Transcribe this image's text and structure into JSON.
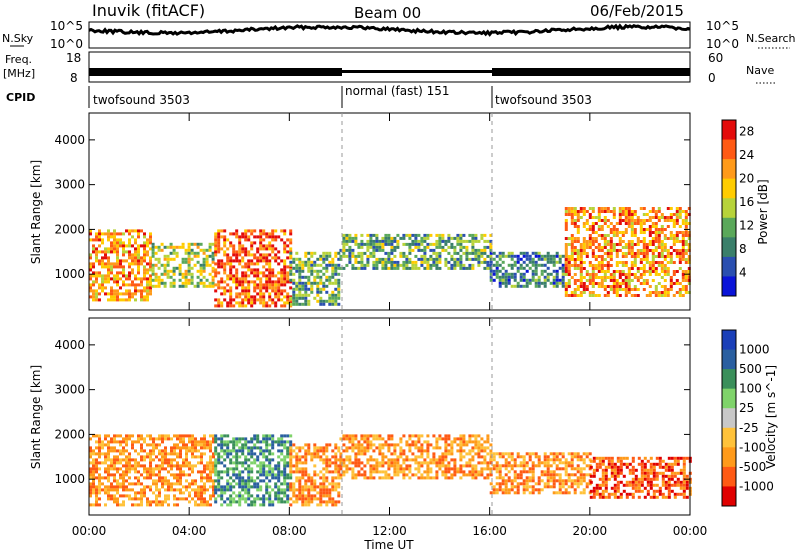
{
  "header": {
    "station": "Inuvik (fitACF)",
    "beam": "Beam 00",
    "date": "06/Feb/2015"
  },
  "top_panels": {
    "nsky": {
      "label": "N.Sky",
      "ticks": [
        "10^5",
        "10^0"
      ],
      "right_label": "N.Search",
      "right_ticks": [
        "10^5",
        "10^0"
      ]
    },
    "freq": {
      "label_line1": "Freq.",
      "label_line2": "[MHz]",
      "ticks": [
        "18",
        "8"
      ],
      "right_label": "Nave",
      "right_ticks": [
        "60",
        "0"
      ]
    },
    "cpid": {
      "label": "CPID",
      "segments": [
        {
          "name": "twofsound 3503",
          "start": 0,
          "end": 10
        },
        {
          "name": "normal (fast) 151",
          "start": 10,
          "end": 16
        },
        {
          "name": "twofsound 3503",
          "start": 16,
          "end": 24
        }
      ]
    }
  },
  "colors": {
    "power_scale": [
      "#0a14d8",
      "#2a4fb0",
      "#3a7f6a",
      "#5aa85a",
      "#b7d33a",
      "#ffcc00",
      "#ff9a1a",
      "#ff5a14",
      "#e30b0b"
    ],
    "velocity_scale": [
      "#e00000",
      "#ff5a14",
      "#ff9a1a",
      "#ffc23a",
      "#c8c8c8",
      "#7fd36a",
      "#3a8f5a",
      "#2a5fa0",
      "#1a3fb8"
    ]
  },
  "chart_data": [
    {
      "type": "heatmap",
      "title": "",
      "xlabel": "Time UT",
      "ylabel": "Slant Range [km]",
      "xlim": [
        0,
        24
      ],
      "ylim": [
        200,
        4600
      ],
      "x_ticks": [
        "00:00",
        "04:00",
        "08:00",
        "12:00",
        "16:00",
        "20:00",
        "00:00"
      ],
      "y_ticks": [
        "1000",
        "2000",
        "3000",
        "4000"
      ],
      "colorbar": {
        "label": "Power [dB]",
        "ticks": [
          "4",
          "8",
          "12",
          "16",
          "20",
          "24",
          "28"
        ],
        "range": [
          0,
          30
        ]
      },
      "regions": [
        {
          "t": [
            0,
            2.5
          ],
          "range_km": [
            400,
            2000
          ],
          "value": 24
        },
        {
          "t": [
            2.5,
            5
          ],
          "range_km": [
            700,
            1700
          ],
          "value": 14
        },
        {
          "t": [
            5,
            8
          ],
          "range_km": [
            300,
            2000
          ],
          "value": 26
        },
        {
          "t": [
            8,
            10
          ],
          "range_km": [
            300,
            1500
          ],
          "value": 10
        },
        {
          "t": [
            10,
            16
          ],
          "range_km": [
            1100,
            1900
          ],
          "value": 10
        },
        {
          "t": [
            16,
            19
          ],
          "range_km": [
            700,
            1500
          ],
          "value": 8
        },
        {
          "t": [
            19,
            24
          ],
          "range_km": [
            500,
            2500
          ],
          "value": 22
        }
      ]
    },
    {
      "type": "heatmap",
      "title": "",
      "xlabel": "Time UT",
      "ylabel": "Slant Range [km]",
      "xlim": [
        0,
        24
      ],
      "ylim": [
        200,
        4600
      ],
      "x_ticks": [
        "00:00",
        "04:00",
        "08:00",
        "12:00",
        "16:00",
        "20:00",
        "00:00"
      ],
      "y_ticks": [
        "1000",
        "2000",
        "3000",
        "4000"
      ],
      "colorbar": {
        "label": "Velocity [m s^-1]",
        "ticks": [
          "1000",
          "500",
          "100",
          "25",
          "-25",
          "-100",
          "-500",
          "-1000"
        ]
      },
      "regions": [
        {
          "t": [
            0,
            5
          ],
          "range_km": [
            400,
            2000
          ],
          "value": -150
        },
        {
          "t": [
            5,
            8
          ],
          "range_km": [
            400,
            2000
          ],
          "value": 100
        },
        {
          "t": [
            8,
            10
          ],
          "range_km": [
            400,
            1800
          ],
          "value": -100
        },
        {
          "t": [
            10,
            16
          ],
          "range_km": [
            1000,
            2000
          ],
          "value": -200
        },
        {
          "t": [
            16,
            20
          ],
          "range_km": [
            700,
            1600
          ],
          "value": -300
        },
        {
          "t": [
            20,
            24
          ],
          "range_km": [
            600,
            1500
          ],
          "value": -500
        }
      ]
    }
  ]
}
